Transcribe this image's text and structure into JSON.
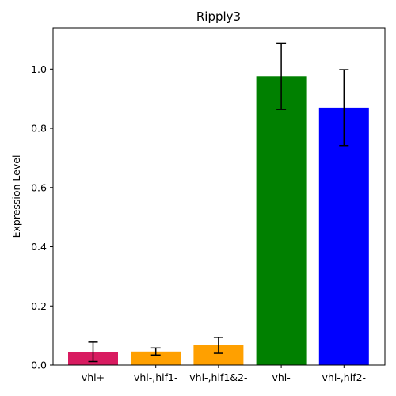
{
  "chart_data": {
    "type": "bar",
    "title": "Ripply3",
    "xlabel": "",
    "ylabel": "Expression Level",
    "categories": [
      "vhl+",
      "vhl-,hif1-",
      "vhl-,hif1&2-",
      "vhl-",
      "vhl-,hif2-"
    ],
    "values": [
      0.045,
      0.046,
      0.067,
      0.976,
      0.87
    ],
    "errors": [
      0.033,
      0.012,
      0.027,
      0.112,
      0.128
    ],
    "colors": [
      "#d81b60",
      "#ffa000",
      "#ffa000",
      "#008000",
      "#0000ff"
    ],
    "ylim": [
      0,
      1.14
    ],
    "yticks": [
      0.0,
      0.2,
      0.4,
      0.6,
      0.8,
      1.0
    ],
    "ytick_labels": [
      "0.0",
      "0.2",
      "0.4",
      "0.6",
      "0.8",
      "1.0"
    ],
    "grid": false,
    "legend": "none"
  }
}
